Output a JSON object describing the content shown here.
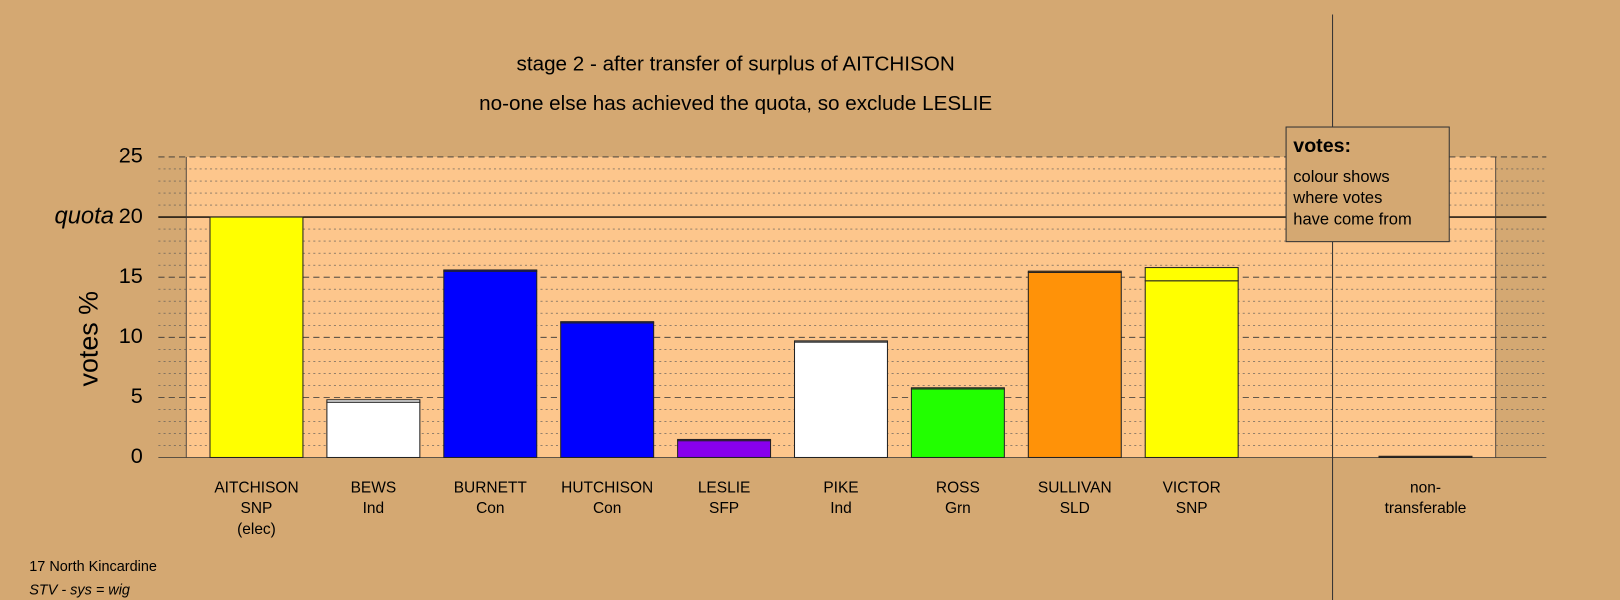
{
  "chart_data": {
    "type": "stacked_bar",
    "title": "stage 2 - after transfer of surplus of AITCHISON",
    "subtitle": "no-one else has achieved the quota, so exclude LESLIE",
    "y_label": "votes %",
    "quota_label": "quota",
    "quota": 20,
    "categories": [
      [
        "AITCHISON",
        "SNP",
        "(elec)"
      ],
      [
        "BEWS",
        "Ind"
      ],
      [
        "BURNETT",
        "Con"
      ],
      [
        "HUTCHISON",
        "Con"
      ],
      [
        "LESLIE",
        "SFP"
      ],
      [
        "PIKE",
        "Ind"
      ],
      [
        "ROSS",
        "Grn"
      ],
      [
        "SULLIVAN",
        "SLD"
      ],
      [
        "VICTOR",
        "SNP"
      ],
      [
        "non-",
        "transferable"
      ]
    ],
    "series": [
      {
        "values": [
          20,
          4.6,
          15.5,
          11.2,
          1.4,
          9.6,
          5.7,
          15.4,
          14.7,
          0
        ],
        "color": [
          "#ffff00",
          "#ffffff",
          "#0000ff",
          "#0000ff",
          "#8800ee",
          "#ffffff",
          "#22ff00",
          "#ff9208",
          "#ffff00",
          "#7a4a1e"
        ]
      },
      {
        "values": [
          0,
          0.2,
          0.1,
          0.1,
          0.1,
          0.1,
          0.1,
          0.1,
          1.1,
          0.1
        ],
        "color": [
          "#ffff00",
          "#ffffff",
          "#0000ff",
          "#0000ff",
          "#8800ee",
          "#ffffff",
          "#22ff00",
          "#ff9208",
          "#ffff00",
          "#7a4a1e"
        ]
      }
    ],
    "ylim": [
      0,
      25
    ],
    "yticks": [
      0,
      5,
      10,
      15,
      20,
      25
    ],
    "yminor": [
      1,
      2,
      3,
      4,
      6,
      7,
      8,
      9,
      11,
      12,
      13,
      14,
      16,
      17,
      18,
      19,
      21,
      22,
      23,
      24
    ],
    "grid": true,
    "legend": {
      "title": "votes:",
      "lines": [
        "colour shows",
        "where votes",
        "have come from"
      ]
    },
    "footer": [
      "17 North Kincardine",
      "STV - sys = wig"
    ]
  }
}
